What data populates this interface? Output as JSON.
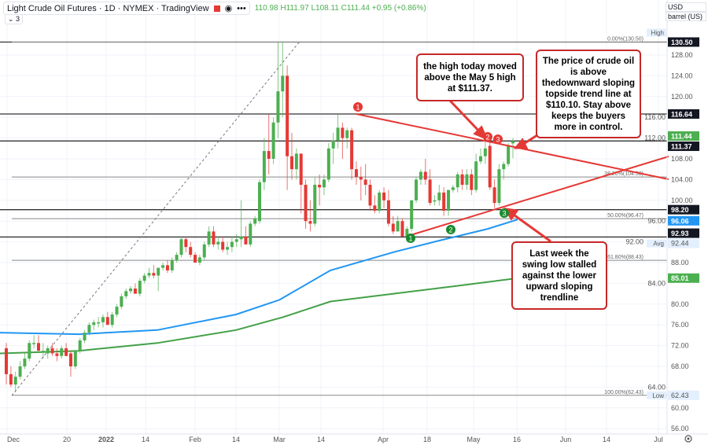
{
  "header": {
    "title": "Light Crude Oil Futures · 1D · NYMEX · TradingView",
    "ohlc_text": "110.98 H111.97 L108.11 C111.44 +0.95 (+0.86%)",
    "indicators_collapsed": "3",
    "currency": "USD",
    "unit": "barrel (US)"
  },
  "annotations": [
    "the high today moved above the May 5 high at $111.37.",
    "The price of crude oil is above thedownward sloping topside trend line at $110.10. Stay above keeps the buyers more in control.",
    "Last week the swing low stalled against the lower upward sloping trendline"
  ],
  "markers": {
    "red": [
      "1",
      "2",
      "3"
    ],
    "green": [
      "1",
      "2",
      "3"
    ]
  },
  "colors": {
    "up": "#4caf50",
    "down": "#e53935",
    "ma100": "#2196f3",
    "ma200": "#43a047",
    "trend": "#e53935"
  },
  "chart_data": {
    "type": "candlestick",
    "ylim": [
      54,
      132
    ],
    "y_ticks": [
      "128.00",
      "124.00",
      "120.00",
      "116.00",
      "112.00",
      "108.00",
      "104.00",
      "100.00",
      "96.00",
      "92.00",
      "88.00",
      "84.00",
      "80.00",
      "76.00",
      "72.00",
      "68.00",
      "64.00",
      "60.00",
      "56.00"
    ],
    "x_ticks": [
      "Dec",
      "20",
      "2022",
      "14",
      "Feb",
      "14",
      "Mar",
      "14",
      "Apr",
      "18",
      "May",
      "16",
      "Jun",
      "14",
      "Jul"
    ],
    "candles_ohlc": [
      [
        71.5,
        72.5,
        64.5,
        66.5
      ],
      [
        66.5,
        68,
        64,
        64.5
      ],
      [
        64.5,
        67,
        63,
        66
      ],
      [
        66,
        69,
        65.5,
        68
      ],
      [
        68,
        70.5,
        67.5,
        69.5
      ],
      [
        69.5,
        73,
        69,
        72.5
      ],
      [
        72.5,
        74,
        71.5,
        72.5
      ],
      [
        72.5,
        74,
        71,
        71
      ],
      [
        71,
        72.5,
        69.5,
        71
      ],
      [
        70.5,
        72,
        69.5,
        71.5
      ],
      [
        71.5,
        72.5,
        70,
        70.5
      ],
      [
        70.5,
        71.5,
        69,
        70
      ],
      [
        70,
        72,
        69.5,
        71.5
      ],
      [
        71.5,
        72.5,
        70,
        70
      ],
      [
        70.5,
        71,
        66,
        68
      ],
      [
        68,
        71,
        67.5,
        71
      ],
      [
        71,
        73.5,
        70.5,
        73
      ],
      [
        73,
        75,
        72.5,
        74.5
      ],
      [
        74.5,
        76.5,
        74,
        76
      ],
      [
        76,
        77,
        75,
        76.5
      ],
      [
        76.5,
        77.5,
        75.5,
        76.5
      ],
      [
        76.5,
        78,
        75.5,
        77.5
      ],
      [
        77.5,
        78.5,
        76,
        76
      ],
      [
        76,
        78.5,
        75.5,
        78
      ],
      [
        78,
        80,
        77.5,
        79.5
      ],
      [
        79.5,
        82,
        79,
        81.5
      ],
      [
        81.5,
        83,
        81,
        82.5
      ],
      [
        82.5,
        83.5,
        82,
        83
      ],
      [
        83,
        84,
        82,
        82
      ],
      [
        82,
        85,
        81.5,
        84.5
      ],
      [
        84.5,
        86,
        84,
        85.5
      ],
      [
        85.5,
        87,
        85,
        86
      ],
      [
        86,
        87.5,
        85,
        85.5
      ],
      [
        85.5,
        87,
        82.5,
        87
      ],
      [
        87,
        88,
        86.5,
        87.5
      ],
      [
        87.5,
        88.5,
        86,
        86.5
      ],
      [
        86.5,
        89,
        86,
        88.5
      ],
      [
        88.5,
        90,
        88,
        89.5
      ],
      [
        89.5,
        93,
        89,
        92.5
      ],
      [
        92.5,
        93,
        90,
        91
      ],
      [
        91,
        92,
        89,
        89.5
      ],
      [
        89.5,
        90,
        88,
        88
      ],
      [
        88,
        89.5,
        87.5,
        89
      ],
      [
        89,
        92,
        88.5,
        91.5
      ],
      [
        91.5,
        95,
        91,
        94
      ],
      [
        94,
        95,
        91,
        91.5
      ],
      [
        91.5,
        93,
        90.5,
        92
      ],
      [
        92,
        93,
        90,
        90.5
      ],
      [
        90.5,
        92,
        89.5,
        91
      ],
      [
        91,
        93,
        90,
        92
      ],
      [
        92,
        93.5,
        91,
        92.5
      ],
      [
        92.5,
        100,
        91,
        93
      ],
      [
        93,
        95,
        91.5,
        91.5
      ],
      [
        91.5,
        96,
        91,
        95.5
      ],
      [
        95.5,
        97,
        95,
        96.5
      ],
      [
        96,
        104,
        95.5,
        103.5
      ],
      [
        103.5,
        112,
        102,
        109.5
      ],
      [
        109.5,
        116.5,
        105,
        108
      ],
      [
        108,
        116,
        107,
        115
      ],
      [
        115,
        130.5,
        112,
        121
      ],
      [
        121,
        130.5,
        116,
        124
      ],
      [
        124,
        126,
        102,
        108.5
      ],
      [
        108.5,
        113,
        104,
        106
      ],
      [
        106,
        110,
        104,
        109
      ],
      [
        109,
        109,
        97.5,
        103
      ],
      [
        103,
        104,
        94.5,
        96
      ],
      [
        96,
        100,
        94,
        95.5
      ],
      [
        95.5,
        104.5,
        95,
        103
      ],
      [
        103,
        105,
        99,
        102.5
      ],
      [
        102.5,
        105,
        101,
        104
      ],
      [
        104,
        111,
        103.5,
        110
      ],
      [
        110,
        113,
        107,
        111.5
      ],
      [
        111.5,
        116.6,
        110,
        114
      ],
      [
        114,
        115,
        108,
        112
      ],
      [
        112,
        114,
        110,
        113.5
      ],
      [
        113.5,
        114,
        104,
        106
      ],
      [
        106,
        107.5,
        103,
        104.5
      ],
      [
        104.5,
        106.5,
        100,
        104
      ],
      [
        104,
        107,
        101,
        103
      ],
      [
        103,
        104,
        98,
        99
      ],
      [
        99,
        101,
        97.5,
        98
      ],
      [
        98,
        102,
        97.5,
        101.5
      ],
      [
        101.5,
        102.5,
        98.5,
        100
      ],
      [
        100,
        102,
        95,
        95.5
      ],
      [
        95.5,
        97,
        93.5,
        94
      ],
      [
        94,
        97,
        94,
        96
      ],
      [
        96,
        96.5,
        93,
        93
      ],
      [
        93,
        95,
        92,
        94.5
      ],
      [
        94.5,
        100,
        94,
        100
      ],
      [
        100,
        104.5,
        99.5,
        104
      ],
      [
        104,
        106,
        103,
        105.5
      ],
      [
        105.5,
        108,
        103,
        104
      ],
      [
        104,
        106,
        99,
        99.5
      ],
      [
        100,
        101,
        99,
        100
      ],
      [
        100,
        103,
        99,
        101.5
      ],
      [
        101.5,
        102.5,
        97,
        98
      ],
      [
        98,
        102,
        97,
        102
      ],
      [
        102,
        103,
        101.5,
        102.5
      ],
      [
        102.5,
        105.5,
        101.5,
        105
      ],
      [
        105,
        106,
        102,
        103
      ],
      [
        103,
        106,
        102,
        105
      ],
      [
        105,
        106,
        101,
        102
      ],
      [
        102,
        109,
        101.5,
        107.5
      ],
      [
        107.5,
        110,
        107,
        108.5
      ],
      [
        108.5,
        111.4,
        107,
        110
      ],
      [
        110.5,
        111.37,
        102,
        102.5
      ],
      [
        102.5,
        104,
        98.5,
        99.5
      ],
      [
        99.5,
        107,
        99,
        106
      ],
      [
        106,
        107.5,
        104,
        107
      ],
      [
        107,
        111,
        106.5,
        110.5
      ],
      [
        110.98,
        111.97,
        108.11,
        111.44
      ]
    ],
    "moving_averages": [
      {
        "values_start_end": [
          74.5,
          96.06
        ],
        "color": "#2196f3"
      },
      {
        "values_start_end": [
          70.5,
          85.01
        ],
        "color": "#43a047"
      }
    ],
    "horizontal_levels": [
      "130.50",
      "116.64",
      "111.44",
      "111.37",
      "98.20",
      "96.06",
      "92.93",
      "85.01"
    ],
    "fib_levels": [
      {
        "label": "0.00%(130.50)",
        "value": 130.5
      },
      {
        "label": "38.20%(104.50)",
        "value": 104.5
      },
      {
        "label": "50.00%(96.47)",
        "value": 96.47
      },
      {
        "label": "61.80%(88.43)",
        "value": 88.43
      },
      {
        "label": "100.00%(62.43)",
        "value": 62.43
      }
    ],
    "price_tags": [
      {
        "text": "High",
        "value": 130.5,
        "kind": "hl"
      },
      {
        "text": "130.50",
        "value": 130.5,
        "kind": "black"
      },
      {
        "text": "116.64",
        "value": 116.64,
        "kind": "black"
      },
      {
        "text": "111.44",
        "value": 111.44,
        "kind": "green"
      },
      {
        "text": "111.37",
        "value": 111.37,
        "kind": "black"
      },
      {
        "text": "98.20",
        "value": 98.2,
        "kind": "black"
      },
      {
        "text": "96.06",
        "value": 96.06,
        "kind": "blue"
      },
      {
        "text": "92.93",
        "value": 92.93,
        "kind": "black"
      },
      {
        "text": "Avg",
        "value": 92.44,
        "kind": "hl"
      },
      {
        "text": "92.44",
        "value": 92.44,
        "kind": "plain"
      },
      {
        "text": "85.01",
        "value": 85.01,
        "kind": "green"
      },
      {
        "text": "Low",
        "value": 62.43,
        "kind": "hl"
      },
      {
        "text": "62.43",
        "value": 62.43,
        "kind": "plain"
      }
    ]
  }
}
